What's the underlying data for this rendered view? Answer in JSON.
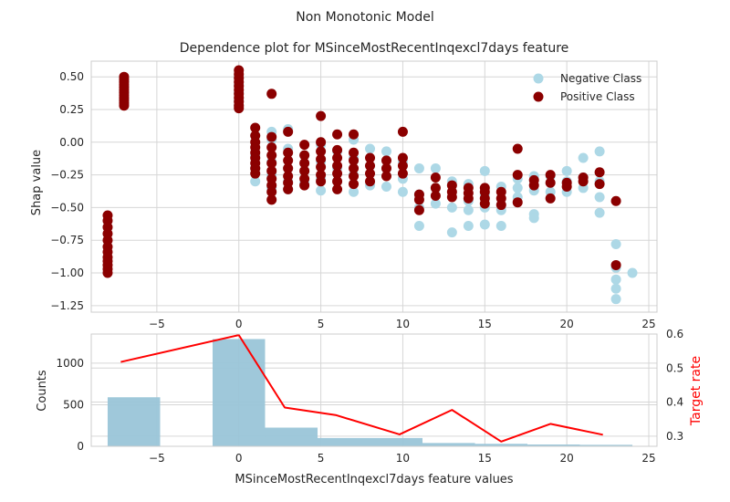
{
  "figure": {
    "suptitle": "Non Monotonic Model"
  },
  "chart_data": [
    {
      "type": "scatter",
      "title": "Dependence plot for MSinceMostRecentInqexcl7days feature",
      "xlabel": "",
      "ylabel": "Shap value",
      "xlim": [
        -9,
        25.5
      ],
      "ylim": [
        -1.3,
        0.62
      ],
      "xticks": [
        -5,
        0,
        5,
        10,
        15,
        20,
        25
      ],
      "yticks": [
        -1.25,
        -1.0,
        -0.75,
        -0.5,
        -0.25,
        0.0,
        0.25,
        0.5
      ],
      "grid": true,
      "legend_position": "top-right",
      "series": [
        {
          "name": "Negative Class",
          "color": "#add8e6",
          "points": [
            [
              -7,
              0.47
            ],
            [
              -7,
              0.42
            ],
            [
              -7,
              0.38
            ],
            [
              -7,
              0.33
            ],
            [
              -7,
              0.29
            ],
            [
              0,
              0.5
            ],
            [
              0,
              0.44
            ],
            [
              0,
              0.38
            ],
            [
              0,
              0.32
            ],
            [
              0,
              0.28
            ],
            [
              1,
              0.05
            ],
            [
              1,
              -0.1
            ],
            [
              1,
              -0.2
            ],
            [
              1,
              -0.3
            ],
            [
              2,
              0.08
            ],
            [
              2,
              0.02
            ],
            [
              2,
              -0.15
            ],
            [
              2,
              -0.25
            ],
            [
              2,
              -0.35
            ],
            [
              3,
              0.1
            ],
            [
              3,
              -0.05
            ],
            [
              3,
              -0.2
            ],
            [
              3,
              -0.3
            ],
            [
              3,
              -0.36
            ],
            [
              4,
              -0.1
            ],
            [
              4,
              -0.22
            ],
            [
              4,
              -0.31
            ],
            [
              5,
              -0.02
            ],
            [
              5,
              -0.15
            ],
            [
              5,
              -0.28
            ],
            [
              5,
              -0.37
            ],
            [
              6,
              -0.07
            ],
            [
              6,
              -0.2
            ],
            [
              6,
              -0.3
            ],
            [
              7,
              0.02
            ],
            [
              7,
              -0.12
            ],
            [
              7,
              -0.25
            ],
            [
              7,
              -0.38
            ],
            [
              8,
              -0.05
            ],
            [
              8,
              -0.18
            ],
            [
              8,
              -0.33
            ],
            [
              9,
              -0.07
            ],
            [
              9,
              -0.2
            ],
            [
              9,
              -0.34
            ],
            [
              10,
              -0.15
            ],
            [
              10,
              -0.28
            ],
            [
              10,
              -0.38
            ],
            [
              11,
              -0.2
            ],
            [
              11,
              -0.4
            ],
            [
              11,
              -0.5
            ],
            [
              11,
              -0.64
            ],
            [
              12,
              -0.2
            ],
            [
              12,
              -0.35
            ],
            [
              12,
              -0.47
            ],
            [
              13,
              -0.3
            ],
            [
              13,
              -0.5
            ],
            [
              13,
              -0.69
            ],
            [
              14,
              -0.32
            ],
            [
              14,
              -0.45
            ],
            [
              14,
              -0.52
            ],
            [
              14,
              -0.64
            ],
            [
              15,
              -0.22
            ],
            [
              15,
              -0.4
            ],
            [
              15,
              -0.5
            ],
            [
              15,
              -0.63
            ],
            [
              16,
              -0.34
            ],
            [
              16,
              -0.52
            ],
            [
              16,
              -0.64
            ],
            [
              17,
              -0.28
            ],
            [
              17,
              -0.35
            ],
            [
              17,
              -0.42
            ],
            [
              18,
              -0.26
            ],
            [
              18,
              -0.37
            ],
            [
              18,
              -0.55
            ],
            [
              18,
              -0.58
            ],
            [
              19,
              -0.26
            ],
            [
              19,
              -0.38
            ],
            [
              20,
              -0.22
            ],
            [
              20,
              -0.3
            ],
            [
              20,
              -0.38
            ],
            [
              21,
              -0.12
            ],
            [
              21,
              -0.27
            ],
            [
              21,
              -0.35
            ],
            [
              22,
              -0.07
            ],
            [
              22,
              -0.3
            ],
            [
              22,
              -0.42
            ],
            [
              22,
              -0.54
            ],
            [
              23,
              -0.78
            ],
            [
              23,
              -0.96
            ],
            [
              23,
              -1.05
            ],
            [
              23,
              -1.12
            ],
            [
              23,
              -1.2
            ],
            [
              24,
              -1.0
            ]
          ]
        },
        {
          "name": "Positive Class",
          "color": "#8b0000",
          "points": [
            [
              -8,
              -0.56
            ],
            [
              -8,
              -0.6
            ],
            [
              -8,
              -0.65
            ],
            [
              -8,
              -0.7
            ],
            [
              -8,
              -0.75
            ],
            [
              -8,
              -0.8
            ],
            [
              -8,
              -0.84
            ],
            [
              -8,
              -0.88
            ],
            [
              -8,
              -0.91
            ],
            [
              -8,
              -0.94
            ],
            [
              -8,
              -0.97
            ],
            [
              -8,
              -1.0
            ],
            [
              -7,
              0.5
            ],
            [
              -7,
              0.48
            ],
            [
              -7,
              0.46
            ],
            [
              -7,
              0.44
            ],
            [
              -7,
              0.42
            ],
            [
              -7,
              0.4
            ],
            [
              -7,
              0.38
            ],
            [
              -7,
              0.36
            ],
            [
              -7,
              0.34
            ],
            [
              -7,
              0.32
            ],
            [
              -7,
              0.3
            ],
            [
              -7,
              0.28
            ],
            [
              0,
              0.55
            ],
            [
              0,
              0.52
            ],
            [
              0,
              0.49
            ],
            [
              0,
              0.46
            ],
            [
              0,
              0.43
            ],
            [
              0,
              0.4
            ],
            [
              0,
              0.37
            ],
            [
              0,
              0.34
            ],
            [
              0,
              0.31
            ],
            [
              0,
              0.28
            ],
            [
              0,
              0.26
            ],
            [
              1,
              0.11
            ],
            [
              1,
              0.05
            ],
            [
              1,
              0.0
            ],
            [
              1,
              -0.04
            ],
            [
              1,
              -0.08
            ],
            [
              1,
              -0.12
            ],
            [
              1,
              -0.16
            ],
            [
              1,
              -0.2
            ],
            [
              1,
              -0.24
            ],
            [
              2,
              0.37
            ],
            [
              2,
              0.04
            ],
            [
              2,
              -0.04
            ],
            [
              2,
              -0.1
            ],
            [
              2,
              -0.16
            ],
            [
              2,
              -0.22
            ],
            [
              2,
              -0.28
            ],
            [
              2,
              -0.33
            ],
            [
              2,
              -0.38
            ],
            [
              2,
              -0.44
            ],
            [
              3,
              0.08
            ],
            [
              3,
              -0.08
            ],
            [
              3,
              -0.14
            ],
            [
              3,
              -0.2
            ],
            [
              3,
              -0.26
            ],
            [
              3,
              -0.31
            ],
            [
              3,
              -0.36
            ],
            [
              4,
              -0.02
            ],
            [
              4,
              -0.1
            ],
            [
              4,
              -0.16
            ],
            [
              4,
              -0.22
            ],
            [
              4,
              -0.28
            ],
            [
              4,
              -0.33
            ],
            [
              5,
              0.2
            ],
            [
              5,
              0.0
            ],
            [
              5,
              -0.07
            ],
            [
              5,
              -0.13
            ],
            [
              5,
              -0.19
            ],
            [
              5,
              -0.25
            ],
            [
              5,
              -0.3
            ],
            [
              6,
              0.06
            ],
            [
              6,
              -0.06
            ],
            [
              6,
              -0.12
            ],
            [
              6,
              -0.18
            ],
            [
              6,
              -0.24
            ],
            [
              6,
              -0.3
            ],
            [
              6,
              -0.36
            ],
            [
              7,
              0.06
            ],
            [
              7,
              -0.08
            ],
            [
              7,
              -0.14
            ],
            [
              7,
              -0.2
            ],
            [
              7,
              -0.26
            ],
            [
              7,
              -0.32
            ],
            [
              8,
              -0.12
            ],
            [
              8,
              -0.18
            ],
            [
              8,
              -0.24
            ],
            [
              8,
              -0.3
            ],
            [
              9,
              -0.14
            ],
            [
              9,
              -0.2
            ],
            [
              9,
              -0.26
            ],
            [
              10,
              0.08
            ],
            [
              10,
              -0.12
            ],
            [
              10,
              -0.18
            ],
            [
              10,
              -0.24
            ],
            [
              11,
              -0.4
            ],
            [
              11,
              -0.44
            ],
            [
              11,
              -0.52
            ],
            [
              12,
              -0.27
            ],
            [
              12,
              -0.35
            ],
            [
              12,
              -0.41
            ],
            [
              13,
              -0.33
            ],
            [
              13,
              -0.38
            ],
            [
              13,
              -0.42
            ],
            [
              14,
              -0.35
            ],
            [
              14,
              -0.39
            ],
            [
              14,
              -0.43
            ],
            [
              15,
              -0.35
            ],
            [
              15,
              -0.38
            ],
            [
              15,
              -0.43
            ],
            [
              15,
              -0.47
            ],
            [
              16,
              -0.38
            ],
            [
              16,
              -0.43
            ],
            [
              16,
              -0.48
            ],
            [
              17,
              -0.05
            ],
            [
              17,
              -0.25
            ],
            [
              17,
              -0.46
            ],
            [
              18,
              -0.29
            ],
            [
              18,
              -0.33
            ],
            [
              19,
              -0.25
            ],
            [
              19,
              -0.31
            ],
            [
              19,
              -0.43
            ],
            [
              20,
              -0.31
            ],
            [
              20,
              -0.34
            ],
            [
              21,
              -0.27
            ],
            [
              21,
              -0.3
            ],
            [
              22,
              -0.23
            ],
            [
              22,
              -0.32
            ],
            [
              23,
              -0.45
            ],
            [
              23,
              -0.94
            ]
          ]
        }
      ]
    },
    {
      "type": "bar",
      "title": "",
      "xlabel": "MSinceMostRecentInqexcl7days feature values",
      "ylabel": "Counts",
      "ylabel_right": "Target rate",
      "xlim": [
        -9,
        25.5
      ],
      "ylim": [
        0,
        1350
      ],
      "ylim_right": [
        0.27,
        0.6
      ],
      "xticks": [
        -5,
        0,
        5,
        10,
        15,
        20,
        25
      ],
      "yticks": [
        0,
        500,
        1000
      ],
      "yticks_right": [
        0.3,
        0.4,
        0.5,
        0.6
      ],
      "grid": true,
      "bar_color": "#9ac5d8",
      "line_color": "#ff0000",
      "bins": [
        {
          "x_start": -8.0,
          "x_end": -4.8,
          "count": 590
        },
        {
          "x_start": -4.8,
          "x_end": -1.6,
          "count": 0
        },
        {
          "x_start": -1.6,
          "x_end": 1.6,
          "count": 1290
        },
        {
          "x_start": 1.6,
          "x_end": 4.8,
          "count": 225
        },
        {
          "x_start": 4.8,
          "x_end": 8.0,
          "count": 100
        },
        {
          "x_start": 8.0,
          "x_end": 11.2,
          "count": 100
        },
        {
          "x_start": 11.2,
          "x_end": 14.4,
          "count": 40
        },
        {
          "x_start": 14.4,
          "x_end": 17.6,
          "count": 30
        },
        {
          "x_start": 17.6,
          "x_end": 20.8,
          "count": 22
        },
        {
          "x_start": 20.8,
          "x_end": 24.0,
          "count": 18
        }
      ],
      "target_rate": {
        "x": [
          -7.2,
          0.0,
          2.8,
          5.9,
          9.8,
          13.0,
          16.0,
          19.0,
          22.2
        ],
        "y": [
          0.518,
          0.597,
          0.384,
          0.362,
          0.305,
          0.377,
          0.284,
          0.336,
          0.304
        ]
      }
    }
  ]
}
